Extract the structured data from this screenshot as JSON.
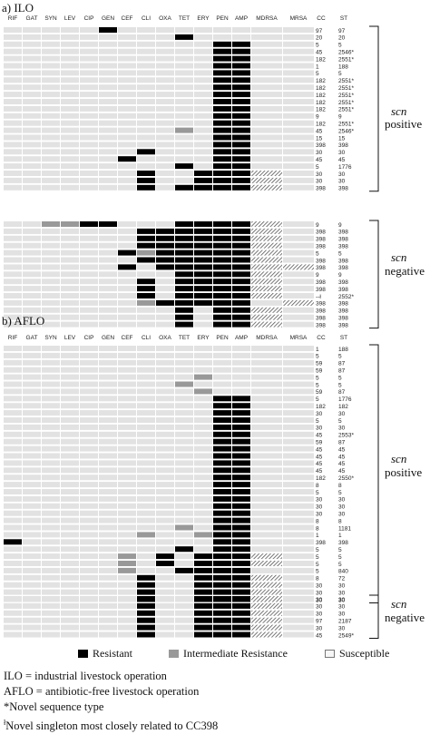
{
  "columns": [
    "RIF",
    "GAT",
    "SYN",
    "LEV",
    "CIP",
    "GEN",
    "CEF",
    "CLI",
    "OXA",
    "TET",
    "ERY",
    "PEN",
    "AMP",
    "MDRSA",
    "MRSA",
    "CC",
    "ST"
  ],
  "colors": {
    "resistant": "#000000",
    "intermediate": "#999999",
    "susceptible": "#e2e2e2",
    "mdrsa_hatch": "#555555"
  },
  "panels": [
    {
      "title": "a) ILO",
      "groups": [
        {
          "label_italic": "scn",
          "label": "positive",
          "rows": [
            {
              "R": [
                5
              ],
              "I": [],
              "cc": "97",
              "st": "97"
            },
            {
              "R": [
                9
              ],
              "I": [],
              "cc": "20",
              "st": "20"
            },
            {
              "R": [
                11,
                12
              ],
              "I": [],
              "cc": "5",
              "st": "5"
            },
            {
              "R": [
                11,
                12
              ],
              "I": [],
              "cc": "45",
              "st": "2546*"
            },
            {
              "R": [
                11,
                12
              ],
              "I": [],
              "cc": "182",
              "st": "2551*"
            },
            {
              "R": [
                11,
                12
              ],
              "I": [],
              "cc": "1",
              "st": "188"
            },
            {
              "R": [
                11,
                12
              ],
              "I": [],
              "cc": "5",
              "st": "5"
            },
            {
              "R": [
                11,
                12
              ],
              "I": [],
              "cc": "182",
              "st": "2551*"
            },
            {
              "R": [
                11,
                12
              ],
              "I": [],
              "cc": "182",
              "st": "2551*"
            },
            {
              "R": [
                11,
                12
              ],
              "I": [],
              "cc": "182",
              "st": "2551*"
            },
            {
              "R": [
                11,
                12
              ],
              "I": [],
              "cc": "182",
              "st": "2551*"
            },
            {
              "R": [
                11,
                12
              ],
              "I": [],
              "cc": "182",
              "st": "2551*"
            },
            {
              "R": [
                11,
                12
              ],
              "I": [],
              "cc": "9",
              "st": "9"
            },
            {
              "R": [
                11,
                12
              ],
              "I": [],
              "cc": "182",
              "st": "2551*"
            },
            {
              "R": [
                11,
                12
              ],
              "I": [
                9
              ],
              "cc": "45",
              "st": "2546*"
            },
            {
              "R": [
                11,
                12
              ],
              "I": [],
              "cc": "15",
              "st": "15"
            },
            {
              "R": [
                11,
                12
              ],
              "I": [],
              "cc": "398",
              "st": "398"
            },
            {
              "R": [
                7,
                11,
                12
              ],
              "I": [],
              "cc": "30",
              "st": "30"
            },
            {
              "R": [
                6,
                11,
                12
              ],
              "I": [],
              "cc": "45",
              "st": "45"
            },
            {
              "R": [
                9,
                11,
                12
              ],
              "I": [],
              "cc": "5",
              "st": "1776"
            },
            {
              "R": [
                7,
                10,
                11,
                12
              ],
              "H": [
                13
              ],
              "I": [],
              "cc": "30",
              "st": "30"
            },
            {
              "R": [
                7,
                10,
                11,
                12
              ],
              "H": [
                13
              ],
              "I": [],
              "cc": "30",
              "st": "30"
            },
            {
              "R": [
                7,
                9,
                10,
                11,
                12
              ],
              "H": [
                13
              ],
              "I": [],
              "cc": "398",
              "st": "398"
            }
          ]
        },
        {
          "label_italic": "scn",
          "label": "negative",
          "rows": [
            {
              "R": [
                4,
                5,
                9,
                10,
                11,
                12
              ],
              "H": [
                13
              ],
              "I": [
                2,
                3
              ],
              "cc": "9",
              "st": "9"
            },
            {
              "R": [
                7,
                8,
                9,
                10,
                11,
                12
              ],
              "H": [
                13
              ],
              "I": [],
              "cc": "398",
              "st": "398"
            },
            {
              "R": [
                7,
                8,
                9,
                10,
                11,
                12
              ],
              "H": [
                13
              ],
              "I": [],
              "cc": "398",
              "st": "398"
            },
            {
              "R": [
                7,
                8,
                9,
                10,
                11,
                12
              ],
              "H": [
                13
              ],
              "I": [],
              "cc": "398",
              "st": "398"
            },
            {
              "R": [
                6,
                8,
                9,
                10,
                11,
                12
              ],
              "H": [
                13
              ],
              "I": [
                7
              ],
              "cc": "5",
              "st": "5"
            },
            {
              "R": [
                7,
                8,
                9,
                10,
                11,
                12
              ],
              "H": [
                13
              ],
              "I": [],
              "cc": "398",
              "st": "398"
            },
            {
              "R": [
                6,
                8,
                9,
                10,
                11,
                12
              ],
              "H": [
                13,
                14
              ],
              "I": [],
              "cc": "398",
              "st": "398"
            },
            {
              "R": [
                9,
                10,
                11,
                12
              ],
              "H": [
                13
              ],
              "I": [],
              "cc": "9",
              "st": "9"
            },
            {
              "R": [
                7,
                9,
                10,
                11,
                12
              ],
              "H": [
                13
              ],
              "I": [],
              "cc": "398",
              "st": "398"
            },
            {
              "R": [
                7,
                9,
                10,
                11,
                12
              ],
              "H": [
                13
              ],
              "I": [],
              "cc": "398",
              "st": "398"
            },
            {
              "R": [
                7,
                9,
                10,
                11,
                12
              ],
              "H": [
                13
              ],
              "I": [],
              "cc": "--ł",
              "st": "2552*"
            },
            {
              "R": [
                8,
                9,
                10,
                11,
                12
              ],
              "H": [
                14
              ],
              "I": [
                7
              ],
              "cc": "398",
              "st": "398"
            },
            {
              "R": [
                9,
                11,
                12
              ],
              "H": [
                13
              ],
              "I": [],
              "cc": "398",
              "st": "398"
            },
            {
              "R": [
                9,
                11,
                12
              ],
              "H": [
                13
              ],
              "I": [],
              "cc": "398",
              "st": "398"
            },
            {
              "R": [
                9,
                11,
                12
              ],
              "H": [
                13
              ],
              "I": [],
              "cc": "398",
              "st": "398"
            }
          ]
        }
      ]
    },
    {
      "title": "b) AFLO",
      "groups": [
        {
          "label_italic": "scn",
          "label": "positive",
          "rows": [
            {
              "R": [],
              "I": [],
              "cc": "1",
              "st": "188"
            },
            {
              "R": [],
              "I": [],
              "cc": "5",
              "st": "5"
            },
            {
              "R": [],
              "I": [],
              "cc": "59",
              "st": "87"
            },
            {
              "R": [],
              "I": [],
              "cc": "59",
              "st": "87"
            },
            {
              "R": [],
              "I": [
                10
              ],
              "cc": "5",
              "st": "5"
            },
            {
              "R": [],
              "I": [
                9
              ],
              "cc": "5",
              "st": "5"
            },
            {
              "R": [],
              "I": [
                10
              ],
              "cc": "59",
              "st": "87"
            },
            {
              "R": [
                11,
                12
              ],
              "I": [],
              "cc": "5",
              "st": "1776"
            },
            {
              "R": [
                11,
                12
              ],
              "I": [],
              "cc": "182",
              "st": "182"
            },
            {
              "R": [
                11,
                12
              ],
              "I": [],
              "cc": "30",
              "st": "30"
            },
            {
              "R": [
                11,
                12
              ],
              "I": [],
              "cc": "5",
              "st": "5"
            },
            {
              "R": [
                11,
                12
              ],
              "I": [],
              "cc": "30",
              "st": "30"
            },
            {
              "R": [
                11,
                12
              ],
              "I": [],
              "cc": "45",
              "st": "2553*"
            },
            {
              "R": [
                11,
                12
              ],
              "I": [],
              "cc": "59",
              "st": "87"
            },
            {
              "R": [
                11,
                12
              ],
              "I": [],
              "cc": "45",
              "st": "45"
            },
            {
              "R": [
                11,
                12
              ],
              "I": [],
              "cc": "45",
              "st": "45"
            },
            {
              "R": [
                11,
                12
              ],
              "I": [],
              "cc": "45",
              "st": "45"
            },
            {
              "R": [
                11,
                12
              ],
              "I": [],
              "cc": "45",
              "st": "45"
            },
            {
              "R": [
                11,
                12
              ],
              "I": [],
              "cc": "182",
              "st": "2550*"
            },
            {
              "R": [
                11,
                12
              ],
              "I": [],
              "cc": "8",
              "st": "8"
            },
            {
              "R": [
                11,
                12
              ],
              "I": [],
              "cc": "5",
              "st": "5"
            },
            {
              "R": [
                11,
                12
              ],
              "I": [],
              "cc": "30",
              "st": "30"
            },
            {
              "R": [
                11,
                12
              ],
              "I": [],
              "cc": "30",
              "st": "30"
            },
            {
              "R": [
                11,
                12
              ],
              "I": [],
              "cc": "30",
              "st": "30"
            },
            {
              "R": [
                11,
                12
              ],
              "I": [],
              "cc": "8",
              "st": "8"
            },
            {
              "R": [
                11,
                12
              ],
              "I": [
                9
              ],
              "cc": "8",
              "st": "1181"
            },
            {
              "R": [
                11,
                12
              ],
              "I": [
                7,
                10
              ],
              "cc": "1",
              "st": "1"
            },
            {
              "R": [
                0,
                11,
                12
              ],
              "I": [],
              "cc": "398",
              "st": "398"
            },
            {
              "R": [
                9,
                11,
                12
              ],
              "I": [],
              "cc": "5",
              "st": "5"
            },
            {
              "R": [
                8,
                10,
                11,
                12
              ],
              "H": [
                13
              ],
              "I": [
                6
              ],
              "cc": "5",
              "st": "5"
            },
            {
              "R": [
                8,
                10,
                11,
                12
              ],
              "H": [
                13
              ],
              "I": [
                6
              ],
              "cc": "5",
              "st": "5"
            },
            {
              "R": [
                9,
                10,
                11,
                12
              ],
              "I": [
                6
              ],
              "cc": "5",
              "st": "840"
            },
            {
              "R": [
                7,
                10,
                11,
                12
              ],
              "H": [
                13
              ],
              "I": [],
              "cc": "8",
              "st": "72"
            },
            {
              "R": [
                7,
                10,
                11,
                12
              ],
              "H": [
                13
              ],
              "I": [],
              "cc": "30",
              "st": "30"
            },
            {
              "R": [
                7,
                10,
                11,
                12
              ],
              "H": [
                13
              ],
              "I": [],
              "cc": "30",
              "st": "30"
            },
            {
              "R": [
                7,
                10,
                11,
                12
              ],
              "H": [
                13
              ],
              "I": [],
              "cc": "30",
              "st": "30"
            }
          ]
        },
        {
          "label_italic": "scn",
          "label": "negative",
          "rows": [
            {
              "R": [
                7,
                10,
                11,
                12
              ],
              "H": [
                13
              ],
              "I": [],
              "cc": "30",
              "st": "30"
            },
            {
              "R": [
                7,
                10,
                11,
                12
              ],
              "H": [
                13
              ],
              "I": [],
              "cc": "30",
              "st": "30"
            },
            {
              "R": [
                7,
                10,
                11,
                12
              ],
              "H": [
                13
              ],
              "I": [],
              "cc": "30",
              "st": "30"
            },
            {
              "R": [
                7,
                10,
                11,
                12
              ],
              "H": [
                13
              ],
              "I": [],
              "cc": "97",
              "st": "2187"
            },
            {
              "R": [
                7,
                10,
                11,
                12
              ],
              "H": [
                13
              ],
              "I": [],
              "cc": "30",
              "st": "30"
            },
            {
              "R": [
                7,
                10,
                11,
                12
              ],
              "H": [
                13
              ],
              "I": [],
              "cc": "45",
              "st": "2549*"
            }
          ]
        }
      ]
    }
  ],
  "legend": {
    "resistant": "Resistant",
    "intermediate": "Intermediate Resistance",
    "susceptible": "Susceptible"
  },
  "notes": [
    "ILO = industrial livestock operation",
    "AFLO = antibiotic-free livestock operation",
    "*Novel sequence type",
    "Novel singleton most closely related to CC398"
  ],
  "note_superscript": "ł"
}
